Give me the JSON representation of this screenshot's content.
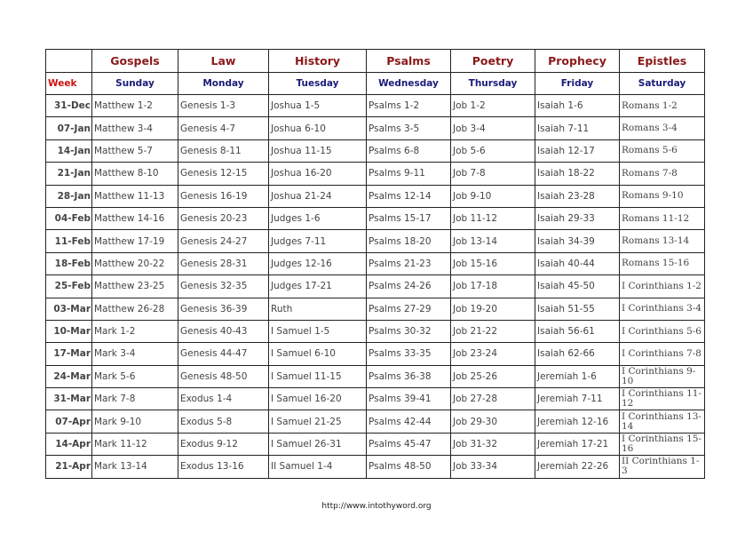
{
  "categories": [
    "Gospels",
    "Law",
    "History",
    "Psalms",
    "Poetry",
    "Prophecy",
    "Epistles"
  ],
  "week_label": "Week",
  "days": [
    "Sunday",
    "Monday",
    "Tuesday",
    "Wednesday",
    "Thursday",
    "Friday",
    "Saturday"
  ],
  "rows": [
    [
      "31-Dec",
      "Matthew 1-2",
      "Genesis 1-3",
      "Joshua 1-5",
      "Psalms 1-2",
      "Job 1-2",
      "Isaiah 1-6",
      "Romans 1-2"
    ],
    [
      "07-Jan",
      "Matthew 3-4",
      "Genesis 4-7",
      "Joshua 6-10",
      "Psalms 3-5",
      "Job 3-4",
      "Isaiah 7-11",
      "Romans 3-4"
    ],
    [
      "14-Jan",
      "Matthew 5-7",
      "Genesis 8-11",
      "Joshua 11-15",
      "Psalms 6-8",
      "Job 5-6",
      "Isaiah 12-17",
      "Romans 5-6"
    ],
    [
      "21-Jan",
      "Matthew 8-10",
      "Genesis 12-15",
      "Joshua 16-20",
      "Psalms 9-11",
      "Job 7-8",
      "Isaiah 18-22",
      "Romans 7-8"
    ],
    [
      "28-Jan",
      "Matthew 11-13",
      "Genesis 16-19",
      "Joshua 21-24",
      "Psalms 12-14",
      "Job 9-10",
      "Isaiah 23-28",
      "Romans 9-10"
    ],
    [
      "04-Feb",
      "Matthew 14-16",
      "Genesis 20-23",
      "Judges 1-6",
      "Psalms 15-17",
      "Job 11-12",
      "Isaiah 29-33",
      "Romans 11-12"
    ],
    [
      "11-Feb",
      "Matthew 17-19",
      "Genesis 24-27",
      "Judges 7-11",
      "Psalms 18-20",
      "Job 13-14",
      "Isaiah 34-39",
      "Romans 13-14"
    ],
    [
      "18-Feb",
      "Matthew 20-22",
      "Genesis 28-31",
      "Judges 12-16",
      "Psalms 21-23",
      "Job 15-16",
      "Isaiah 40-44",
      "Romans 15-16"
    ],
    [
      "25-Feb",
      "Matthew 23-25",
      "Genesis 32-35",
      "Judges 17-21",
      "Psalms 24-26",
      "Job 17-18",
      "Isaiah 45-50",
      "I Corinthians 1-2"
    ],
    [
      "03-Mar",
      "Matthew 26-28",
      "Genesis 36-39",
      "Ruth",
      "Psalms 27-29",
      "Job 19-20",
      "Isaiah 51-55",
      "I Corinthians 3-4"
    ],
    [
      "10-Mar",
      "Mark 1-2",
      "Genesis 40-43",
      "I Samuel 1-5",
      "Psalms 30-32",
      "Job 21-22",
      "Isaiah 56-61",
      "I Corinthians 5-6"
    ],
    [
      "17-Mar",
      "Mark 3-4",
      "Genesis 44-47",
      "I Samuel 6-10",
      "Psalms 33-35",
      "Job 23-24",
      "Isaiah 62-66",
      "I Corinthians 7-8"
    ],
    [
      "24-Mar",
      "Mark 5-6",
      "Genesis 48-50",
      "I Samuel 11-15",
      "Psalms 36-38",
      "Job 25-26",
      "Jeremiah 1-6",
      "I Corinthians 9-10"
    ],
    [
      "31-Mar",
      "Mark 7-8",
      "Exodus 1-4",
      "I Samuel 16-20",
      "Psalms 39-41",
      "Job 27-28",
      "Jeremiah 7-11",
      "I Corinthians 11-12"
    ],
    [
      "07-Apr",
      "Mark 9-10",
      "Exodus 5-8",
      "I Samuel 21-25",
      "Psalms 42-44",
      "Job 29-30",
      "Jeremiah 12-16",
      "I Corinthians 13-14"
    ],
    [
      "14-Apr",
      "Mark 11-12",
      "Exodus 9-12",
      "I Samuel 26-31",
      "Psalms 45-47",
      "Job 31-32",
      "Jeremiah 17-21",
      "I Corinthians 15-16"
    ],
    [
      "21-Apr",
      "Mark 13-14",
      "Exodus 13-16",
      "II Samuel 1-4",
      "Psalms 48-50",
      "Job 33-34",
      "Jeremiah 22-26",
      "II Corinthians 1-3"
    ]
  ],
  "footer": "http://www.intothyword.org"
}
